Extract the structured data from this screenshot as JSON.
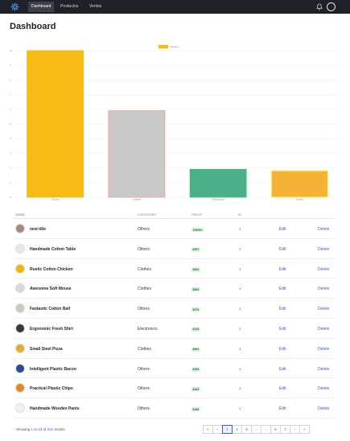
{
  "nav": {
    "items": [
      "Dashboard",
      "Productos",
      "Ventas"
    ],
    "active_index": 0,
    "logo_icon": "star-logo-icon",
    "bell_icon": "bell-icon",
    "avatar_icon": "user-avatar"
  },
  "page": {
    "title": "Dashboard"
  },
  "chart_data": {
    "type": "bar",
    "categories": [
      "Others",
      "Clothes",
      "Electronics",
      "Shoes"
    ],
    "values": [
      10,
      5.9,
      1.9,
      1.8
    ],
    "series_name": "category",
    "ylim": [
      0,
      10
    ],
    "yticks": [
      0,
      1,
      2,
      3,
      4,
      5,
      6,
      7,
      8,
      9,
      10
    ],
    "colors": [
      "#f8bb16",
      "#c9c9c9",
      "#4caf8c",
      "#f5b234"
    ],
    "edge_colors": [
      "#f8bb16",
      "#f2a0a0",
      "#45c07a",
      "#fff24a"
    ],
    "legend_position": "top",
    "grid": true
  },
  "table": {
    "headers": [
      "NAME",
      "CATEGORY",
      "PRICE",
      "ID",
      "",
      ""
    ],
    "rows": [
      {
        "name": "new title",
        "category": "Others",
        "price": "100000",
        "stock": "1",
        "edit": "Edit",
        "delete": "Delete",
        "avatar_color": "#a88a78"
      },
      {
        "name": "Handmade Cotton Table",
        "category": "Others",
        "price": "$997",
        "stock": "1",
        "edit": "Edit",
        "delete": "Delete",
        "avatar_color": "#e8e8e8"
      },
      {
        "name": "Rustic Cotton Chicken",
        "category": "Clothes",
        "price": "$322",
        "stock": "1",
        "edit": "Edit",
        "delete": "Delete",
        "avatar_color": "#f2b600"
      },
      {
        "name": "Awesome Soft Mouse",
        "category": "Clothes",
        "price": "$692",
        "stock": "1",
        "edit": "Edit",
        "delete": "Delete",
        "avatar_color": "#d9d9d9"
      },
      {
        "name": "Fantastic Cotton Ball",
        "category": "Others",
        "price": "$474",
        "stock": "1",
        "edit": "Edit",
        "delete": "Delete",
        "avatar_color": "#cfc6c0"
      },
      {
        "name": "Ergonomic Fresh Shirt",
        "category": "Electronics",
        "price": "$135",
        "stock": "1",
        "edit": "Edit",
        "delete": "Delete",
        "avatar_color": "#3a3a3a"
      },
      {
        "name": "Small Steel Pizza",
        "category": "Clothes",
        "price": "$902",
        "stock": "1",
        "edit": "Edit",
        "delete": "Delete",
        "avatar_color": "#e0b030"
      },
      {
        "name": "Intelligent Plastic Bacon",
        "category": "Others",
        "price": "$355",
        "stock": "1",
        "edit": "Edit",
        "delete": "Delete",
        "avatar_color": "#2b4c8c"
      },
      {
        "name": "Practical Plastic Chips",
        "category": "Others",
        "price": "$493",
        "stock": "1",
        "edit": "Edit",
        "delete": "Delete",
        "avatar_color": "#e08a20"
      },
      {
        "name": "Handmade Wooden Pants",
        "category": "Others",
        "price": "$496",
        "stock": "1",
        "edit": "Edit",
        "delete": "Delete",
        "avatar_color": "#f1f1f1"
      }
    ]
  },
  "footer": {
    "showing_prefix": "Showing",
    "from": "1",
    "to_label": "to",
    "to": "10",
    "of_label": "of",
    "total": "222",
    "results_label": "results"
  },
  "pagination": {
    "buttons": [
      "«",
      "‹",
      "1",
      "2",
      "3",
      "…",
      "…",
      "6",
      "7",
      "›",
      "»"
    ],
    "active_index": 2
  }
}
